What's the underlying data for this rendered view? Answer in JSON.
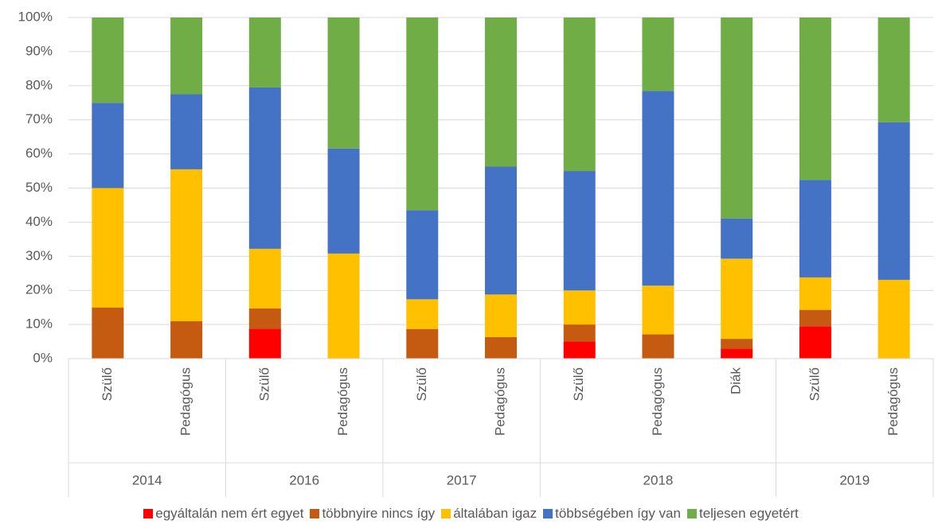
{
  "chart_data": {
    "type": "stacked_bar",
    "categories": [
      "Szülő",
      "Pedagógus",
      "Szülő",
      "Pedagógus",
      "Szülő",
      "Pedagógus",
      "Szülő",
      "Pedagógus",
      "Diák",
      "Szülő",
      "Pedagógus"
    ],
    "groups": [
      {
        "label": "2014",
        "count": 2
      },
      {
        "label": "2016",
        "count": 2
      },
      {
        "label": "2017",
        "count": 2
      },
      {
        "label": "2018",
        "count": 3
      },
      {
        "label": "2019",
        "count": 2
      }
    ],
    "series": [
      {
        "name": "egyáltalán nem ért egyet",
        "color": "#ff0000",
        "values": [
          0,
          0,
          8.8,
          0,
          0,
          0,
          5,
          0,
          2.9,
          9.5,
          0
        ]
      },
      {
        "name": "többnyire nincs így",
        "color": "#c55a11",
        "values": [
          15,
          11,
          5.9,
          0,
          8.7,
          6.3,
          5,
          7.1,
          2.9,
          4.8,
          0
        ]
      },
      {
        "name": "általában igaz",
        "color": "#ffc000",
        "values": [
          35,
          44.5,
          17.5,
          30.8,
          8.7,
          12.5,
          10,
          14.3,
          23.5,
          9.5,
          23.1
        ]
      },
      {
        "name": "többségében így van",
        "color": "#4472c4",
        "values": [
          25,
          22,
          47.3,
          30.8,
          26.1,
          37.5,
          35,
          57.1,
          11.8,
          28.6,
          46.2
        ]
      },
      {
        "name": "teljesen egyetért",
        "color": "#70ad47",
        "values": [
          25,
          22.5,
          20.5,
          38.4,
          56.5,
          43.7,
          45,
          21.5,
          58.9,
          47.6,
          30.7
        ]
      }
    ],
    "ylim": [
      0,
      100
    ],
    "yticks": [
      {
        "value": 0,
        "label": "0%"
      },
      {
        "value": 10,
        "label": "10%"
      },
      {
        "value": 20,
        "label": "20%"
      },
      {
        "value": 30,
        "label": "30%"
      },
      {
        "value": 40,
        "label": "40%"
      },
      {
        "value": 50,
        "label": "50%"
      },
      {
        "value": 60,
        "label": "60%"
      },
      {
        "value": 70,
        "label": "70%"
      },
      {
        "value": 80,
        "label": "80%"
      },
      {
        "value": 90,
        "label": "90%"
      },
      {
        "value": 100,
        "label": "100%"
      }
    ],
    "grid": true
  }
}
